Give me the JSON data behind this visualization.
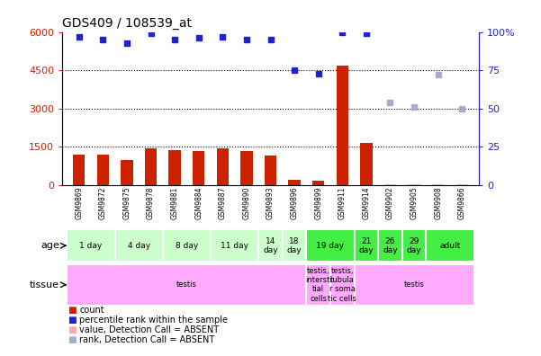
{
  "title": "GDS409 / 108539_at",
  "samples": [
    "GSM9869",
    "GSM9872",
    "GSM9875",
    "GSM9878",
    "GSM9881",
    "GSM9884",
    "GSM9887",
    "GSM9890",
    "GSM9893",
    "GSM9896",
    "GSM9899",
    "GSM9911",
    "GSM9914",
    "GSM9902",
    "GSM9905",
    "GSM9908",
    "GSM9866"
  ],
  "bar_values": [
    1200,
    1200,
    1000,
    1450,
    1380,
    1350,
    1450,
    1350,
    1150,
    200,
    180,
    4700,
    1650,
    50,
    50,
    50,
    50
  ],
  "bar_absent": [
    false,
    false,
    false,
    false,
    false,
    false,
    false,
    false,
    false,
    false,
    false,
    false,
    false,
    true,
    true,
    true,
    true
  ],
  "rank_values_pct": [
    97,
    95,
    93,
    99,
    95,
    96,
    97,
    95,
    95,
    75,
    73,
    100,
    99,
    null,
    null,
    null,
    null
  ],
  "rank_absent_pct": [
    null,
    null,
    null,
    null,
    null,
    null,
    null,
    null,
    null,
    null,
    null,
    null,
    null,
    54,
    51,
    72,
    50
  ],
  "rank_absent": [
    false,
    false,
    false,
    false,
    false,
    false,
    false,
    false,
    false,
    false,
    false,
    false,
    false,
    true,
    true,
    true,
    true
  ],
  "left_ylim": [
    0,
    6000
  ],
  "left_yticks": [
    0,
    1500,
    3000,
    4500,
    6000
  ],
  "right_ylim": [
    0,
    100
  ],
  "right_yticks": [
    0,
    25,
    50,
    75,
    100
  ],
  "right_yticklabels": [
    "0",
    "25",
    "50",
    "75",
    "100%"
  ],
  "bar_color": "#cc2200",
  "bar_absent_color": "#ffaaaa",
  "rank_color": "#2222cc",
  "rank_absent_color": "#aaaacc",
  "age_groups": [
    {
      "label": "1 day",
      "start": 0,
      "end": 1,
      "color": "#ccffcc"
    },
    {
      "label": "4 day",
      "start": 2,
      "end": 3,
      "color": "#ccffcc"
    },
    {
      "label": "8 day",
      "start": 4,
      "end": 5,
      "color": "#ccffcc"
    },
    {
      "label": "11 day",
      "start": 6,
      "end": 7,
      "color": "#ccffcc"
    },
    {
      "label": "14\nday",
      "start": 8,
      "end": 8,
      "color": "#ccffcc"
    },
    {
      "label": "18\nday",
      "start": 9,
      "end": 9,
      "color": "#ccffcc"
    },
    {
      "label": "19 day",
      "start": 10,
      "end": 11,
      "color": "#44dd44"
    },
    {
      "label": "21\nday",
      "start": 12,
      "end": 12,
      "color": "#44dd44"
    },
    {
      "label": "26\nday",
      "start": 13,
      "end": 13,
      "color": "#44dd44"
    },
    {
      "label": "29\nday",
      "start": 14,
      "end": 14,
      "color": "#44dd44"
    },
    {
      "label": "adult",
      "start": 15,
      "end": 16,
      "color": "#44dd44"
    }
  ],
  "tissue_groups": [
    {
      "label": "testis",
      "start": 0,
      "end": 9,
      "color": "#ffaaff"
    },
    {
      "label": "testis,\nintersti\ntial\ncells",
      "start": 10,
      "end": 10,
      "color": "#ffaaff"
    },
    {
      "label": "testis,\ntubula\nr soma\ntic cells",
      "start": 11,
      "end": 11,
      "color": "#ffaaff"
    },
    {
      "label": "testis",
      "start": 12,
      "end": 16,
      "color": "#ffaaff"
    }
  ],
  "legend_items": [
    {
      "label": "count",
      "color": "#cc2200"
    },
    {
      "label": "percentile rank within the sample",
      "color": "#2222cc"
    },
    {
      "label": "value, Detection Call = ABSENT",
      "color": "#ffaaaa"
    },
    {
      "label": "rank, Detection Call = ABSENT",
      "color": "#aaaacc"
    }
  ]
}
